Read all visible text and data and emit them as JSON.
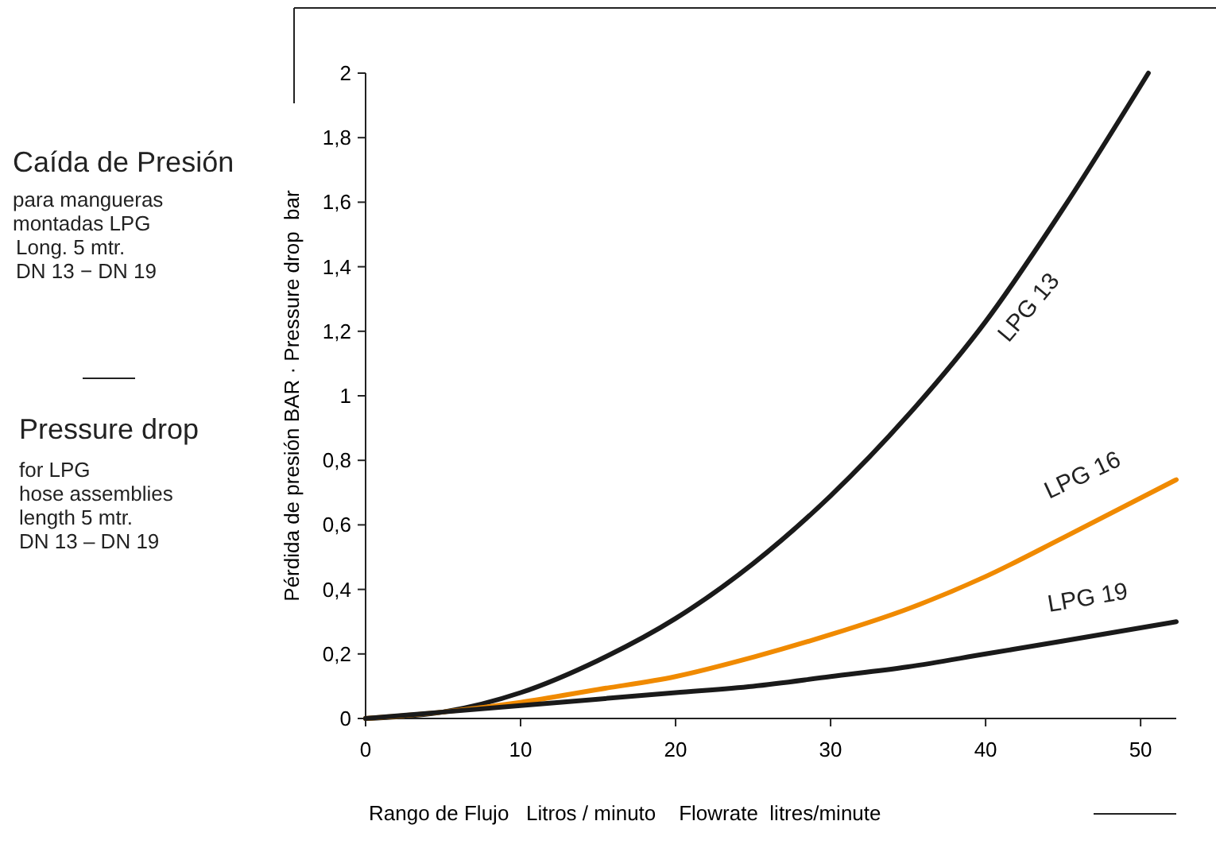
{
  "chart_data": {
    "type": "line",
    "xlabel": "Rango de Flujo   Litros / minuto    Flowrate  litres/minute",
    "ylabel": "Pérdida de presión BAR · Pressure drop  bar",
    "annotations": [
      "Caída de Presión",
      "para mangueras\nmontadas LPG\nLong. 5 mtr.\nDN 13 − DN 19",
      "Pressure drop",
      "for LPG\nhose assemblies\nlength 5 mtr.\nDN 13 – DN 19"
    ],
    "xlim": [
      0,
      52.3
    ],
    "ylim": [
      0,
      2
    ],
    "xticks": [
      0,
      10,
      20,
      30,
      40,
      50
    ],
    "yticks": [
      0,
      {
        "value": 0.2,
        "label": "0,2"
      },
      {
        "value": 0.4,
        "label": "0,4"
      },
      {
        "value": 0.6,
        "label": "0,6"
      },
      {
        "value": 0.8,
        "label": "0,8"
      },
      1,
      {
        "value": 1.2,
        "label": "1,2"
      },
      {
        "value": 1.4,
        "label": "1,4"
      },
      {
        "value": 1.6,
        "label": "1,6"
      },
      {
        "value": 1.8,
        "label": "1,8"
      },
      2
    ],
    "grid": false,
    "marker": "none",
    "line_style": "solid",
    "series": [
      {
        "name": "LPG 13",
        "color": "#1a1a1a",
        "x": [
          0,
          5,
          10,
          15,
          20,
          25,
          30,
          35,
          40,
          45,
          50.5
        ],
        "values": [
          0,
          0.02,
          0.08,
          0.18,
          0.31,
          0.48,
          0.69,
          0.94,
          1.23,
          1.58,
          2.0
        ]
      },
      {
        "name": "LPG 16",
        "color": "#f08a00",
        "x": [
          0,
          5,
          10,
          15,
          20,
          25,
          30,
          35,
          40,
          45,
          52.3
        ],
        "values": [
          0,
          0.02,
          0.05,
          0.09,
          0.13,
          0.19,
          0.26,
          0.34,
          0.44,
          0.56,
          0.74
        ]
      },
      {
        "name": "LPG 19",
        "color": "#1a1a1a",
        "x": [
          0,
          5,
          10,
          15,
          20,
          25,
          30,
          35,
          40,
          45,
          52.3
        ],
        "values": [
          0,
          0.02,
          0.04,
          0.06,
          0.08,
          0.1,
          0.13,
          0.16,
          0.2,
          0.24,
          0.3
        ]
      }
    ]
  }
}
